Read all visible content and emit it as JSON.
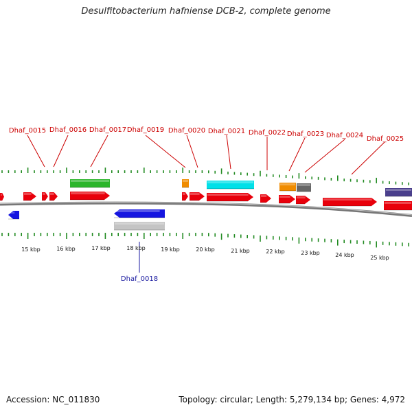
{
  "title": "Desulfitobacterium hafniense DCB-2, complete genome",
  "footer": {
    "accession": "Accession: NC_011830",
    "summary": "Topology: circular; Length: 5,279,134 bp; Genes: 4,972"
  },
  "colors": {
    "forward": "#e8000b",
    "reverse": "#1515e0",
    "tick": "#228b22",
    "backbone": "#777777",
    "label_top": "#cc0000",
    "label_bottom": "#1a1aa0"
  },
  "scale_labels": [
    "15 kbp",
    "16 kbp",
    "17 kbp",
    "18 kbp",
    "19 kbp",
    "20 kbp",
    "21 kbp",
    "22 kbp",
    "23 kbp",
    "24 kbp",
    "25 kbp"
  ],
  "gene_labels": {
    "top": [
      "Dhaf_0015",
      "Dhaf_0016",
      "Dhaf_0017",
      "Dhaf_0019",
      "Dhaf_0020",
      "Dhaf_0021",
      "Dhaf_0022",
      "Dhaf_0023",
      "Dhaf_0024",
      "Dhaf_0025"
    ],
    "bottom": [
      "Dhaf_0018"
    ]
  }
}
